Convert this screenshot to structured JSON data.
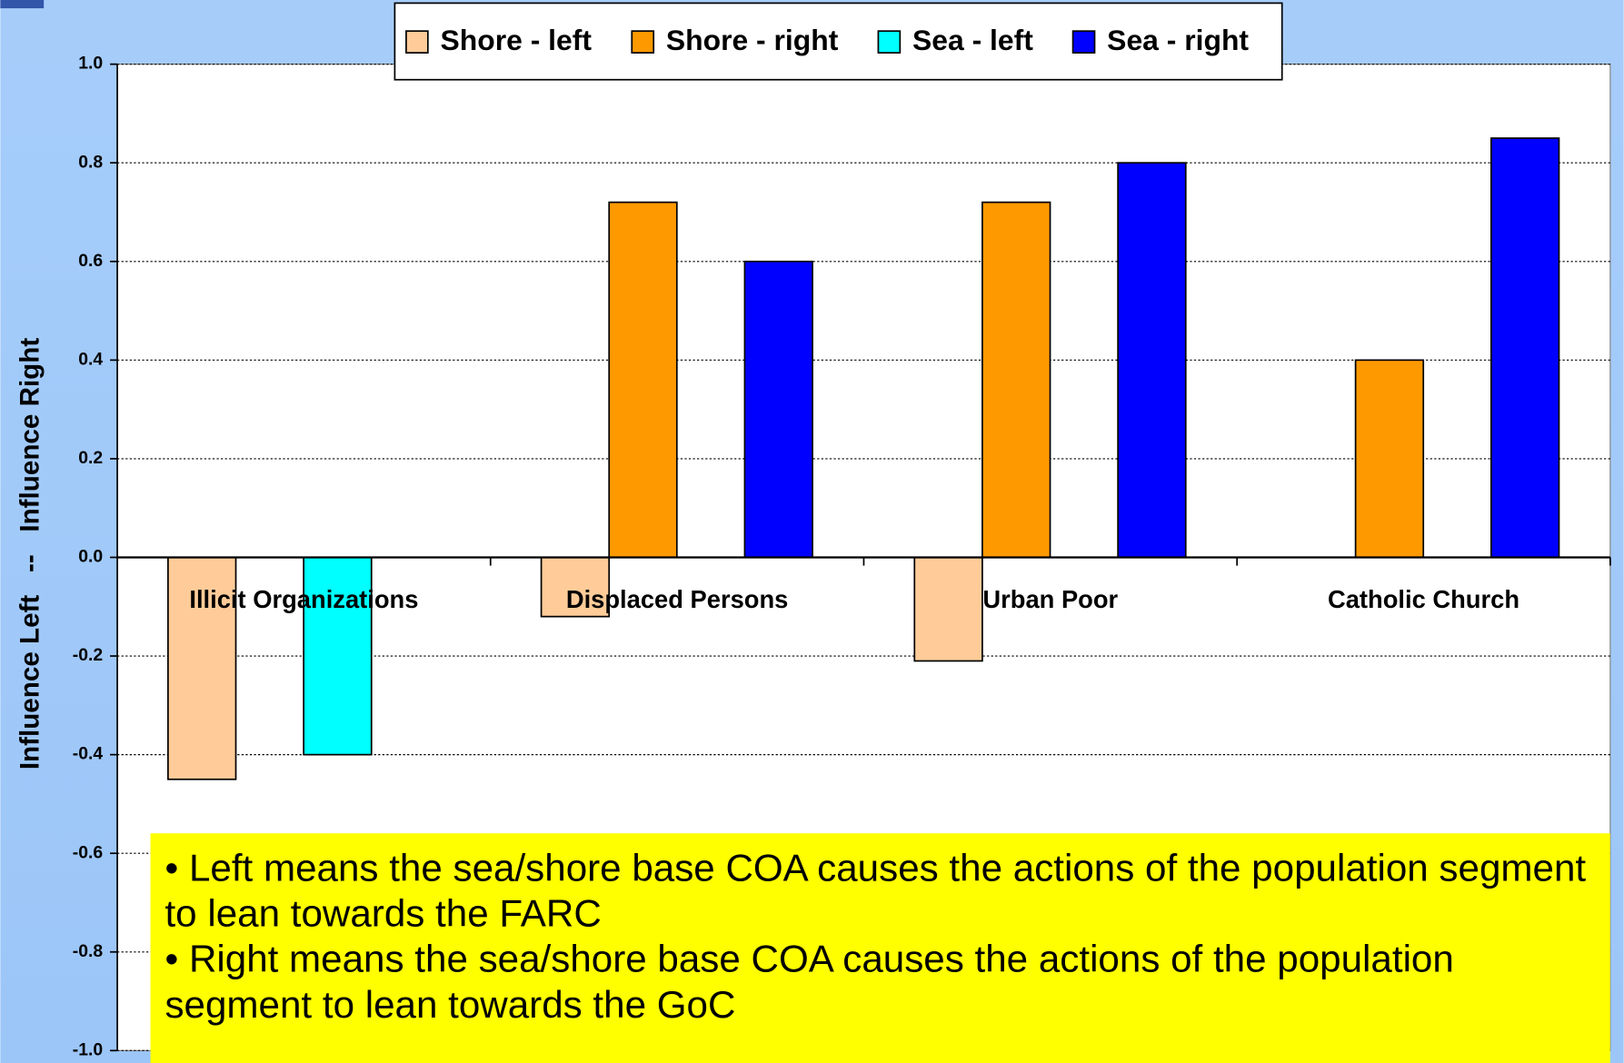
{
  "chart_data": {
    "type": "bar",
    "y_label": "Influence Left   --   Influence Right",
    "categories": [
      "Illicit Organizations",
      "Displaced Persons",
      "Urban Poor",
      "Catholic Church"
    ],
    "series": [
      {
        "name": "Shore - left",
        "color": "#ffcc99",
        "values": [
          -0.45,
          -0.12,
          -0.21,
          null
        ]
      },
      {
        "name": "Shore - right",
        "color": "#ff9900",
        "values": [
          null,
          0.72,
          0.72,
          0.4
        ]
      },
      {
        "name": "Sea - left",
        "color": "#00ffff",
        "values": [
          -0.4,
          null,
          null,
          null
        ]
      },
      {
        "name": "Sea - right",
        "color": "#0000ff",
        "values": [
          null,
          0.6,
          0.8,
          0.85
        ]
      }
    ],
    "ylim": [
      -1,
      1
    ],
    "yticks": [
      {
        "value": -1,
        "label": "-1.0"
      },
      -0.8,
      -0.6,
      -0.4,
      -0.2,
      {
        "value": 0,
        "label": "0.0"
      },
      0.2,
      0.4,
      0.6,
      0.8,
      {
        "value": 1,
        "label": "1.0"
      }
    ],
    "grid": true,
    "legend": "top",
    "annotations": [
      "• Left means the sea/shore base COA causes the actions of the population segment to lean towards the FARC",
      "• Right means the sea/shore base COA causes the actions of the population segment to lean towards the GoC"
    ]
  }
}
